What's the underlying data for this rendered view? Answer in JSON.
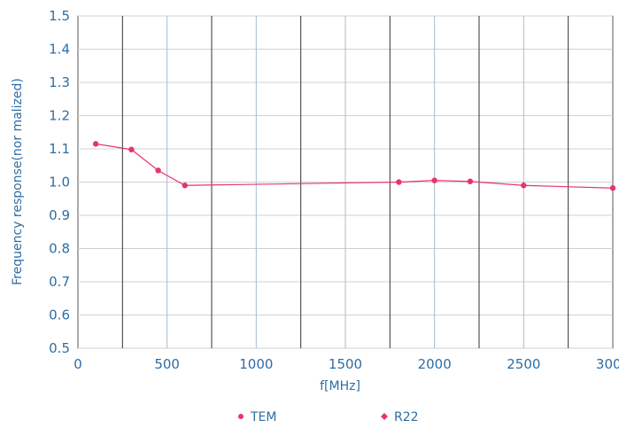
{
  "chart_data": {
    "type": "line",
    "title": "",
    "xlabel": "f[MHz]",
    "ylabel": "Frequency response(nor malized)",
    "xlim": [
      0,
      3000
    ],
    "ylim": [
      0.5,
      1.5
    ],
    "x_ticks": [
      0,
      500,
      1000,
      1500,
      2000,
      2500,
      3000
    ],
    "y_ticks": [
      0.5,
      0.6,
      0.7,
      0.8,
      0.9,
      1.0,
      1.1,
      1.2,
      1.3,
      1.4,
      1.5
    ],
    "x_tick_labels": [
      "0",
      "500",
      "1000",
      "1500",
      "2000",
      "2500",
      "3000"
    ],
    "y_tick_labels": [
      "0.5",
      "0.6",
      "0.7",
      "0.8",
      "0.9",
      "1.0",
      "1.1",
      "1.2",
      "1.3",
      "1.4",
      "1.5"
    ],
    "grid": true,
    "legend_position": "bottom",
    "series": [
      {
        "name": "TEM",
        "color": "#e8336b",
        "marker": "circle",
        "x": [
          100,
          300,
          450,
          600,
          1800,
          2000,
          2200,
          2500,
          3000
        ],
        "y": [
          1.115,
          1.098,
          1.035,
          0.99,
          1.0,
          1.005,
          1.002,
          0.99,
          0.982
        ]
      },
      {
        "name": "R22",
        "color": "#e8336b",
        "marker": "diamond",
        "x": [],
        "y": []
      }
    ]
  }
}
